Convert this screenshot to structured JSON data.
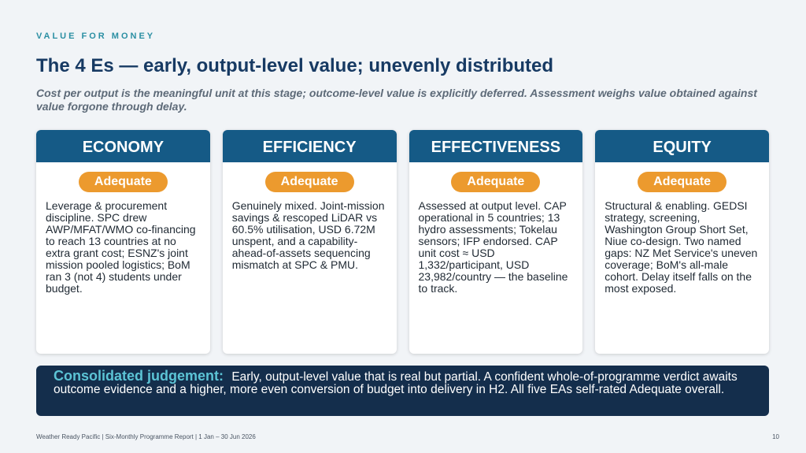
{
  "eyebrow": "VALUE FOR MONEY",
  "title": "The 4 Es — early, output-level value; unevenly distributed",
  "subtitle": "Cost per output is the meaningful unit at this stage; outcome-level value is explicitly deferred. Assessment weighs value obtained against value forgone through delay.",
  "cards": [
    {
      "heading": "ECONOMY",
      "rating": "Adequate",
      "body": "Leverage & procurement discipline. SPC drew AWP/MFAT/WMO co-financing to reach 13 countries at no extra grant cost; ESNZ's joint mission pooled logistics; BoM ran 3 (not 4) students under budget."
    },
    {
      "heading": "EFFICIENCY",
      "rating": "Adequate",
      "body": "Genuinely mixed. Joint-mission savings & rescoped LiDAR vs 60.5% utilisation, USD 6.72M unspent, and a capability-ahead-of-assets sequencing mismatch at SPC & PMU."
    },
    {
      "heading": "EFFECTIVENESS",
      "rating": "Adequate",
      "body": "Assessed at output level. CAP operational in 5 countries; 13 hydro assessments; Tokelau sensors; IFP endorsed. CAP unit cost ≈ USD 1,332/participant, USD 23,982/country — the baseline to track."
    },
    {
      "heading": "EQUITY",
      "rating": "Adequate",
      "body": "Structural & enabling. GEDSI strategy, screening, Washington Group Short Set, Niue co-design. Two named gaps: NZ Met Service's uneven coverage; BoM's all-male cohort. Delay itself falls on the most exposed."
    }
  ],
  "judgement": {
    "lead": "Consolidated judgement:",
    "text": "Early, output-level value that is real but partial. A confident whole-of-programme verdict awaits outcome evidence and a higher, more even conversion of budget into delivery in H2. All five EAs self-rated Adequate overall."
  },
  "footer": {
    "left": "Weather Ready Pacific  |  Six-Monthly Programme Report  |  1 Jan – 30 Jun 2026",
    "page": "10"
  },
  "colors": {
    "accent_teal": "#2b8fa3",
    "title_navy": "#173a63",
    "card_header": "#155a86",
    "badge_orange": "#ec9a2e",
    "judgement_bg": "#142e4c",
    "judgement_lead": "#5cc4d6"
  }
}
